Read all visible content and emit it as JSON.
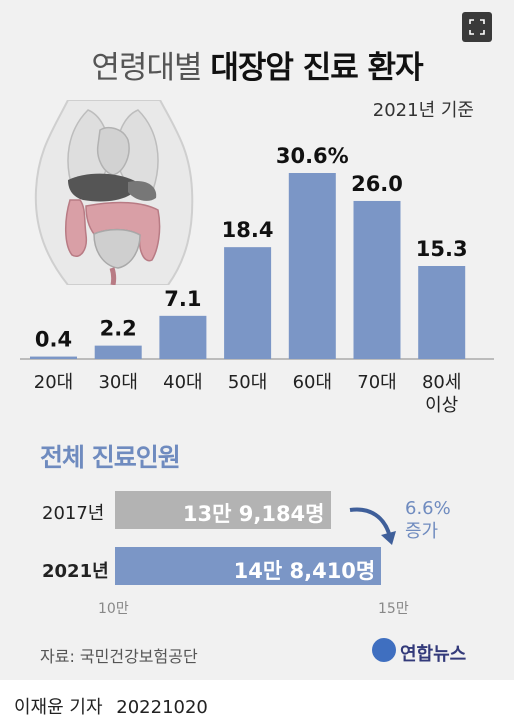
{
  "header": {
    "title_light": "연령대별",
    "title_bold": "대장암 진료 환자",
    "subtitle": "2021년 기준"
  },
  "chart_data": [
    {
      "type": "bar",
      "categories": [
        "20대",
        "30대",
        "40대",
        "50대",
        "60대",
        "70대",
        "80세 이상"
      ],
      "values": [
        0.4,
        2.2,
        7.1,
        18.4,
        30.6,
        26.0,
        15.3
      ],
      "value_labels": [
        "0.4",
        "2.2",
        "7.1",
        "18.4",
        "30.6%",
        "26.0",
        "15.3"
      ],
      "title": "연령대별 대장암 진료 환자",
      "subtitle": "2021년 기준",
      "ylim": [
        0,
        32
      ],
      "grid": false,
      "color": "#7b96c6"
    },
    {
      "type": "bar",
      "orientation": "horizontal",
      "title": "전체 진료인원",
      "categories": [
        "2017년",
        "2021년"
      ],
      "values": [
        139184,
        148410
      ],
      "value_labels": [
        "13만 9,184명",
        "14만 8,410명"
      ],
      "xlim": [
        100000,
        150000
      ],
      "tick_labels": [
        "10만",
        "15만"
      ],
      "annotation": "6.6% 증가",
      "colors": [
        "#b3b3b3",
        "#7b96c6"
      ]
    }
  ],
  "total": {
    "title": "전체 진료인원",
    "rows": [
      {
        "year": "2017년",
        "label": "13만 9,184명"
      },
      {
        "year": "2021년",
        "label": "14만 8,410명"
      }
    ],
    "change_pct": "6.6%",
    "change_word": "증가",
    "ticks": [
      "10만",
      "15만"
    ]
  },
  "footer": {
    "source": "자료: 국민건강보험공단",
    "logo": "연합뉴스",
    "reporter": "이재윤 기자",
    "date": "20221020"
  },
  "colors": {
    "bar": "#7b96c6",
    "bar_old": "#b3b3b3",
    "accent": "#6f8bbf",
    "panel": "#f1f1f1"
  }
}
